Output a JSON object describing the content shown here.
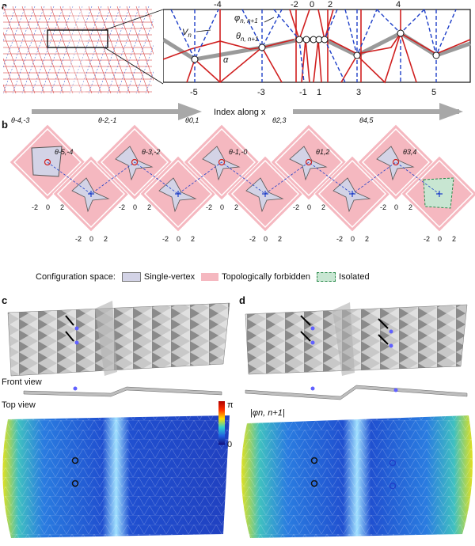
{
  "panels": {
    "a": {
      "letter": "a",
      "index_labels_top": [
        "-4",
        "-2",
        "0",
        "2",
        "4"
      ],
      "index_labels_bottom": [
        "-5",
        "-3",
        "-1",
        "1",
        "3",
        "5"
      ],
      "n_label": "n",
      "symbols": {
        "vertex": "V",
        "vertex_sub": "n",
        "phi": "φ",
        "phi_sub": "n, n+1",
        "theta": "θ",
        "theta_sub": "n, n+1",
        "alpha": "α"
      }
    },
    "b": {
      "letter": "b",
      "arrow_label": "Index along x",
      "theta_labels_top": [
        "θ-4,-3",
        "θ-2,-1",
        "θ0,1",
        "θ2,3",
        "θ4,5"
      ],
      "theta_labels_bottom": [
        "θ-5,-4",
        "θ-3,-2",
        "θ-1,-0",
        "θ1,2",
        "θ3,4"
      ],
      "axis_ticks": [
        "-2",
        "0",
        "2"
      ],
      "legend": {
        "title": "Configuration space:",
        "items": [
          {
            "label": "Single-vertex",
            "color": "#d3d3e6"
          },
          {
            "label": "Topologically forbidden",
            "color": "#f5b8c0"
          },
          {
            "label": "Isolated",
            "color": "#c8e6d2"
          }
        ]
      }
    },
    "c": {
      "letter": "c",
      "front_view": "Front view",
      "top_view": "Top view"
    },
    "d": {
      "letter": "d"
    },
    "colorbar": {
      "max": "π",
      "min": "0",
      "label": "|φn, n+1|"
    }
  },
  "colors": {
    "red": "#d02020",
    "blue": "#1e3fc8",
    "pink": "#f5b8c0",
    "gray": "#a0a0a0"
  }
}
